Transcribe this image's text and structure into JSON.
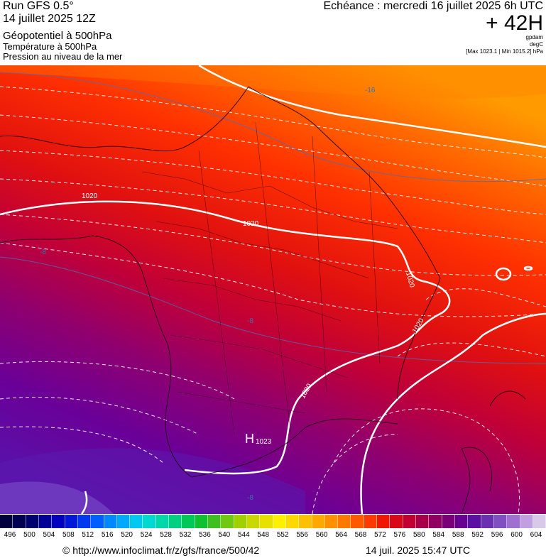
{
  "header": {
    "run": "Run GFS 0.5°",
    "run_date": "14 juillet 2025 12Z",
    "field_main": "Géopotentiel à 500hPa",
    "field_temp": "Température à 500hPa",
    "field_pressure": "Pression au niveau de la mer",
    "echeance": "Echéance : mercredi 16 juillet 2025 6h UTC",
    "lead": "+ 42H",
    "unit1": "gpdam",
    "unit2": "degC",
    "unit3": "[Max 1023.1 | Min 1015.2] hPa"
  },
  "map": {
    "isobar_labels": [
      "1020",
      "1020",
      "1020",
      "1020",
      "1020"
    ],
    "temp_labels": [
      "-16",
      "-8",
      "-8",
      "-8"
    ],
    "high_letter": "H",
    "high_value": "1023"
  },
  "colorbar": {
    "colors": [
      "#00003c",
      "#000050",
      "#00006e",
      "#000096",
      "#0000be",
      "#0018d8",
      "#0038f0",
      "#0060ff",
      "#0088ff",
      "#00a8ff",
      "#00c8f0",
      "#00d8d0",
      "#00d8a8",
      "#00d080",
      "#00c858",
      "#10c030",
      "#40c020",
      "#70c810",
      "#a0d000",
      "#c8d800",
      "#e8e000",
      "#fff000",
      "#ffd800",
      "#ffc000",
      "#ffa800",
      "#ff9000",
      "#ff7800",
      "#ff5a00",
      "#ff3a00",
      "#f01800",
      "#d80818",
      "#c00030",
      "#a80048",
      "#900060",
      "#7a0078",
      "#680090",
      "#5a10a0",
      "#6a30b0",
      "#8050c0",
      "#a070d0",
      "#c0a0e0",
      "#d8c8ea"
    ],
    "ticks": [
      "496",
      "500",
      "504",
      "508",
      "512",
      "516",
      "520",
      "524",
      "528",
      "532",
      "536",
      "540",
      "544",
      "548",
      "552",
      "556",
      "560",
      "564",
      "568",
      "572",
      "576",
      "580",
      "584",
      "588",
      "592",
      "596",
      "600",
      "604"
    ]
  },
  "footer": {
    "url": "© http://www.infoclimat.fr/z/gfs/france/500/42",
    "timestamp": "14 juil. 2025 15:47 UTC"
  }
}
